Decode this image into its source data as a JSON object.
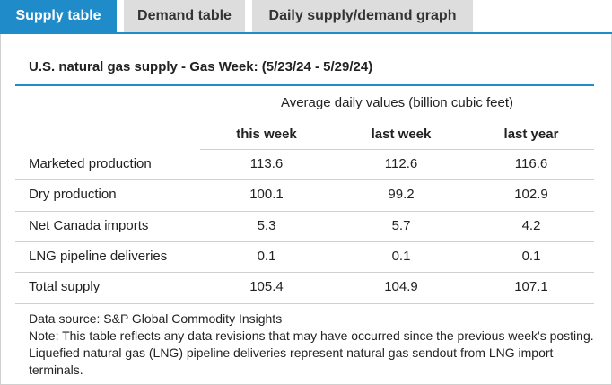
{
  "tabs": [
    "Supply table",
    "Demand table",
    "Daily supply/demand graph"
  ],
  "title": "U.S. natural gas supply - Gas Week: (5/23/24 - 5/29/24)",
  "table": {
    "group_header": "Average daily values (billion cubic feet)",
    "columns": [
      "this week",
      "last week",
      "last year"
    ],
    "rows": [
      [
        "Marketed production",
        "113.6",
        "112.6",
        "116.6"
      ],
      [
        "Dry production",
        "100.1",
        "99.2",
        "102.9"
      ],
      [
        "Net Canada imports",
        "5.3",
        "5.7",
        "4.2"
      ],
      [
        "LNG pipeline deliveries",
        "0.1",
        "0.1",
        "0.1"
      ],
      [
        "Total supply",
        "105.4",
        "104.9",
        "107.1"
      ]
    ]
  },
  "notes": {
    "source": "Data source: S&P Global Commodity Insights",
    "note": "Note: This table reflects any data revisions that may have occurred since the previous week's posting. Liquefied natural gas (LNG) pipeline deliveries represent natural gas sendout from LNG import terminals."
  }
}
